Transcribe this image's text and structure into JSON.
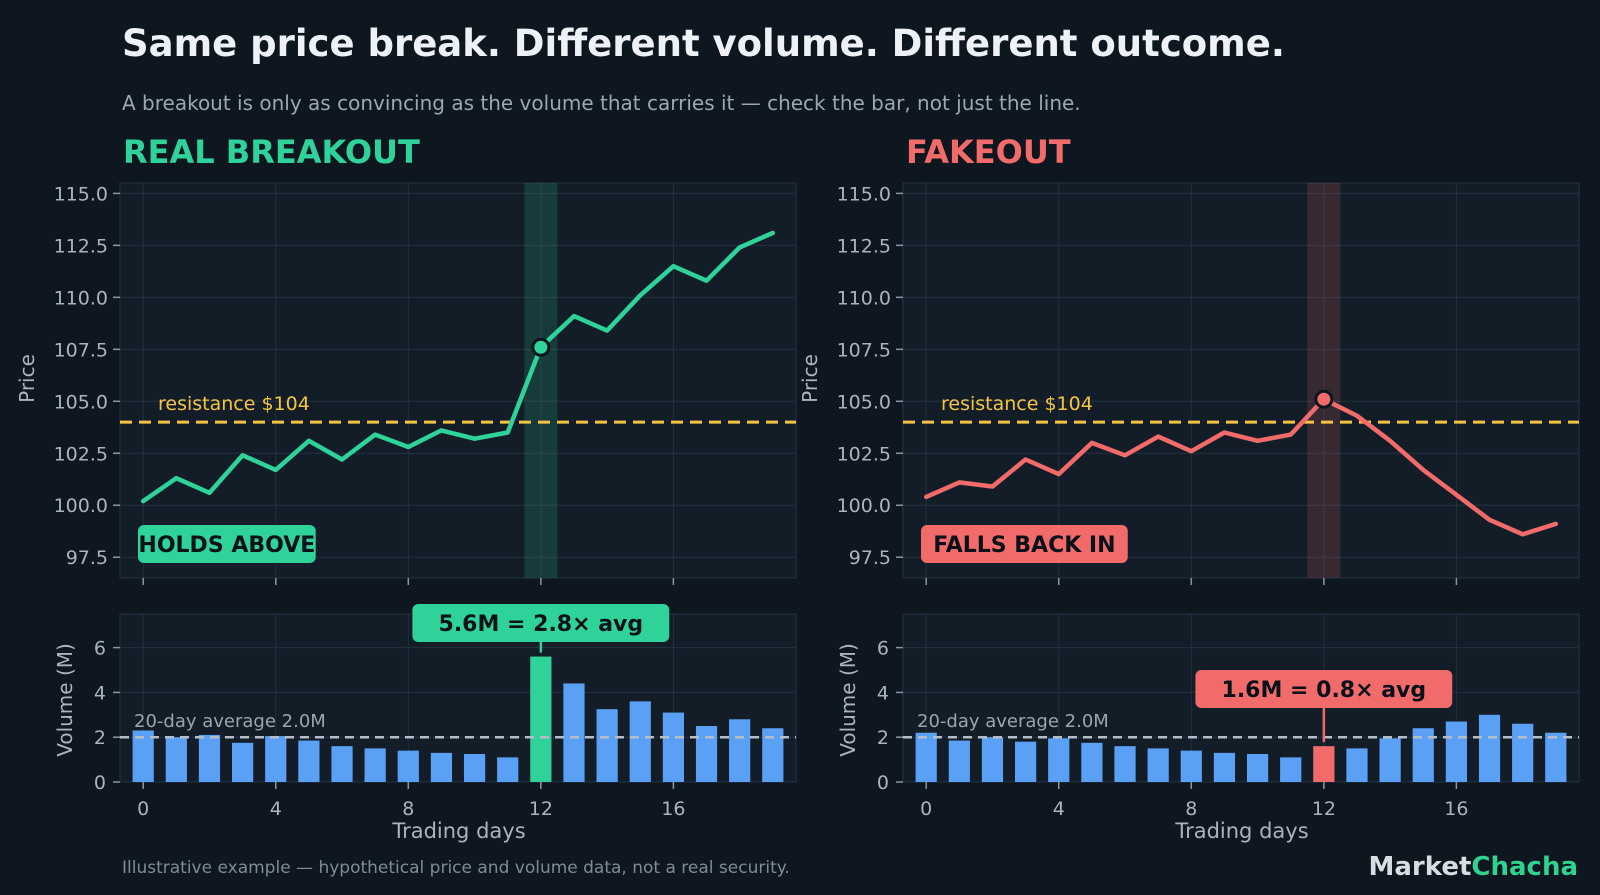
{
  "header": {
    "title": "Same price break. Different volume. Different outcome.",
    "subtitle": "A breakout is only as convincing as the volume that carries it — check the bar, not just the line."
  },
  "footer": {
    "note": "Illustrative example — hypothetical price and volume data, not a real security.",
    "brand_part1": "Market",
    "brand_part2": "Chacha"
  },
  "colors": {
    "background": "#0e1620",
    "panel": "#131d28",
    "grid": "#223040",
    "real": "#2fd39a",
    "fake": "#f26b6b",
    "resistance": "#f5c542",
    "volume": "#5aa0f5",
    "average": "#b5bec8"
  },
  "chart_data": [
    {
      "type": "line",
      "panel_title": "REAL BREAKOUT",
      "ylabel": "Price",
      "ylim": [
        96.5,
        115.5
      ],
      "yticks": [
        97.5,
        100.0,
        102.5,
        105.0,
        107.5,
        110.0,
        112.5,
        115.0
      ],
      "xlim": [
        -0.7,
        19.7
      ],
      "x": [
        0,
        1,
        2,
        3,
        4,
        5,
        6,
        7,
        8,
        9,
        10,
        11,
        12,
        13,
        14,
        15,
        16,
        17,
        18,
        19
      ],
      "values": [
        100.2,
        101.3,
        100.6,
        102.4,
        101.7,
        103.1,
        102.2,
        103.4,
        102.8,
        103.6,
        103.2,
        103.5,
        107.6,
        109.1,
        108.4,
        110.1,
        111.5,
        110.8,
        112.4,
        113.1
      ],
      "resistance": 104,
      "resistance_label": "resistance  $104",
      "highlight_x": 12,
      "badge": "HOLDS ABOVE"
    },
    {
      "type": "bar",
      "xlabel": "Trading days",
      "ylabel": "Volume (M)",
      "ylim": [
        0,
        7.5
      ],
      "yticks": [
        0,
        2,
        4,
        6
      ],
      "xlim": [
        -0.7,
        19.7
      ],
      "xticks": [
        0,
        4,
        8,
        12,
        16
      ],
      "x": [
        0,
        1,
        2,
        3,
        4,
        5,
        6,
        7,
        8,
        9,
        10,
        11,
        12,
        13,
        14,
        15,
        16,
        17,
        18,
        19
      ],
      "values": [
        2.3,
        2.0,
        2.1,
        1.75,
        2.05,
        1.85,
        1.6,
        1.5,
        1.4,
        1.3,
        1.25,
        1.1,
        5.6,
        4.4,
        3.25,
        3.6,
        3.1,
        2.5,
        2.8,
        2.4
      ],
      "average": 2.0,
      "average_label": "20-day average  2.0M",
      "highlight_x": 12,
      "callout": "5.6M  =  2.8× avg"
    },
    {
      "type": "line",
      "panel_title": "FAKEOUT",
      "ylabel": "Price",
      "ylim": [
        96.5,
        115.5
      ],
      "yticks": [
        97.5,
        100.0,
        102.5,
        105.0,
        107.5,
        110.0,
        112.5,
        115.0
      ],
      "xlim": [
        -0.7,
        19.7
      ],
      "x": [
        0,
        1,
        2,
        3,
        4,
        5,
        6,
        7,
        8,
        9,
        10,
        11,
        12,
        13,
        14,
        15,
        16,
        17,
        18,
        19
      ],
      "values": [
        100.4,
        101.1,
        100.9,
        102.2,
        101.5,
        103.0,
        102.4,
        103.3,
        102.6,
        103.5,
        103.1,
        103.4,
        105.1,
        104.3,
        103.1,
        101.7,
        100.5,
        99.3,
        98.6,
        99.1
      ],
      "resistance": 104,
      "resistance_label": "resistance  $104",
      "highlight_x": 12,
      "badge": "FALLS BACK IN"
    },
    {
      "type": "bar",
      "xlabel": "Trading days",
      "ylabel": "Volume (M)",
      "ylim": [
        0,
        7.5
      ],
      "yticks": [
        0,
        2,
        4,
        6
      ],
      "xlim": [
        -0.7,
        19.7
      ],
      "xticks": [
        0,
        4,
        8,
        12,
        16
      ],
      "x": [
        0,
        1,
        2,
        3,
        4,
        5,
        6,
        7,
        8,
        9,
        10,
        11,
        12,
        13,
        14,
        15,
        16,
        17,
        18,
        19
      ],
      "values": [
        2.2,
        1.85,
        2.0,
        1.8,
        1.95,
        1.75,
        1.6,
        1.5,
        1.4,
        1.3,
        1.25,
        1.1,
        1.6,
        1.5,
        1.95,
        2.4,
        2.7,
        3.0,
        2.6,
        2.2
      ],
      "average": 2.0,
      "average_label": "20-day average  2.0M",
      "highlight_x": 12,
      "callout": "1.6M  =  0.8× avg"
    }
  ]
}
